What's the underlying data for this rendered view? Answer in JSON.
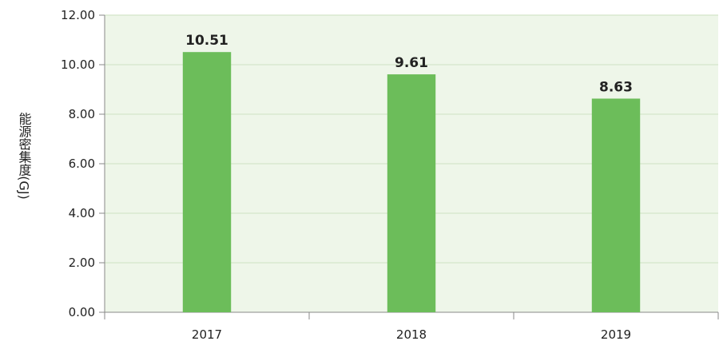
{
  "chart_data": {
    "type": "bar",
    "title": "",
    "xlabel": "",
    "ylabel": "能源密集度(GJ)",
    "categories": [
      "2017",
      "2018",
      "2019"
    ],
    "values": [
      10.51,
      9.61,
      8.63
    ],
    "value_labels": [
      "10.51",
      "9.61",
      "8.63"
    ],
    "ylim": [
      0,
      12
    ],
    "yticks": [
      "0.00",
      "2.00",
      "4.00",
      "6.00",
      "8.00",
      "10.00",
      "12.00"
    ],
    "grid": true,
    "legend": "none",
    "colors": {
      "bar": "#6cbd5a",
      "plot_background": "#eef6e9",
      "grid": "#d9e8cf",
      "axis": "#888888",
      "text": "#222222"
    }
  }
}
